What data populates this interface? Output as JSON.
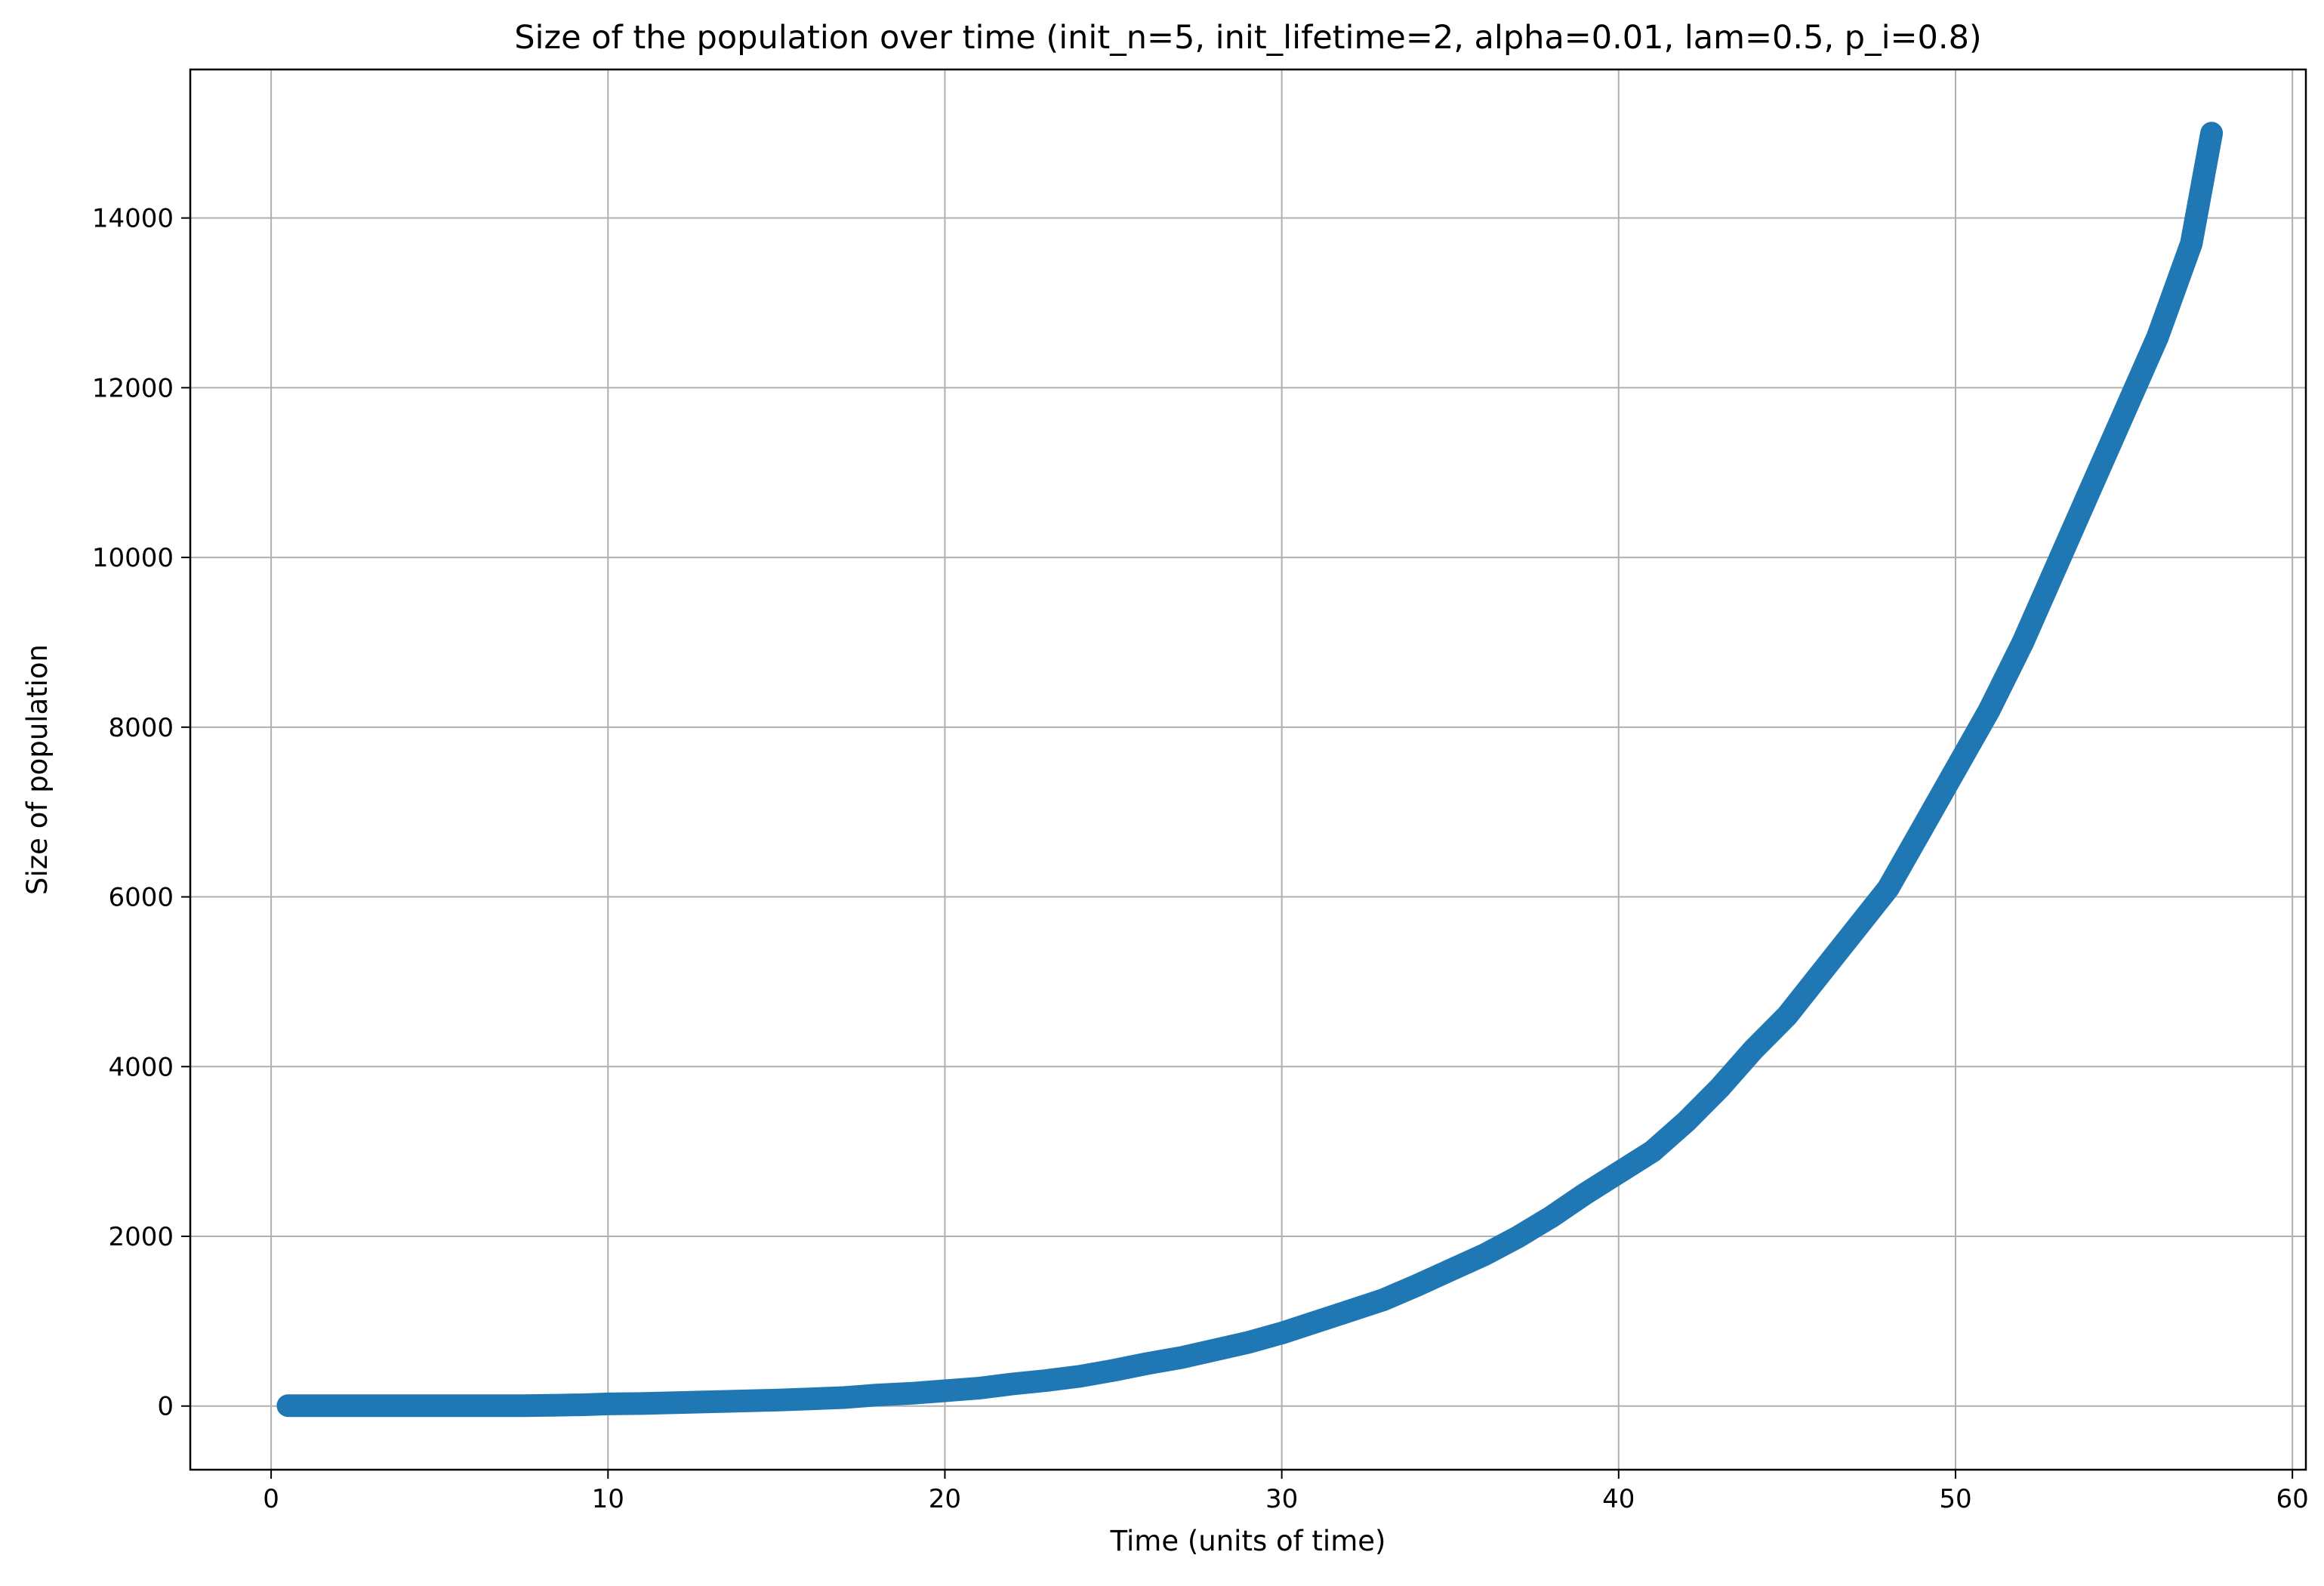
{
  "chart_data": {
    "type": "line",
    "title": "Size of the population over time (init_n=5, init_lifetime=2, alpha=0.01, lam=0.5, p_i=0.8)",
    "xlabel": "Time (units of time)",
    "ylabel": "Size of population",
    "xlim": [
      -2.4,
      60.4
    ],
    "ylim": [
      -750,
      15750
    ],
    "xticks": [
      0,
      10,
      20,
      30,
      40,
      50,
      60
    ],
    "yticks": [
      0,
      2000,
      4000,
      6000,
      8000,
      10000,
      12000,
      14000
    ],
    "grid": true,
    "legend": "none",
    "color": "#1f77b4",
    "series": [
      {
        "x": [
          0.5,
          0.9,
          1.2,
          2.4,
          2.9,
          6.2,
          6.5,
          7.1,
          7.5,
          8.5,
          9.3,
          10,
          11,
          12,
          13,
          14,
          15,
          16,
          17,
          18,
          19,
          20,
          21,
          22,
          23,
          24,
          25,
          26,
          27,
          28,
          29,
          30,
          31,
          32,
          33,
          34,
          35,
          36,
          37,
          38,
          39,
          40,
          41,
          42,
          43,
          44,
          45,
          46,
          47,
          48,
          49,
          50,
          51,
          52,
          53,
          54,
          55,
          56,
          57,
          57.6
        ],
        "y": [
          5,
          5,
          5,
          5,
          5,
          5,
          5,
          5,
          5,
          10,
          15,
          25,
          30,
          40,
          50,
          60,
          70,
          85,
          100,
          130,
          150,
          180,
          210,
          260,
          300,
          350,
          420,
          500,
          570,
          660,
          750,
          860,
          990,
          1120,
          1250,
          1420,
          1600,
          1780,
          1990,
          2230,
          2500,
          2750,
          3000,
          3350,
          3750,
          4200,
          4600,
          5100,
          5600,
          6100,
          6800,
          7500,
          8200,
          9000,
          9900,
          10800,
          11700,
          12600,
          13700,
          15000
        ]
      }
    ]
  }
}
